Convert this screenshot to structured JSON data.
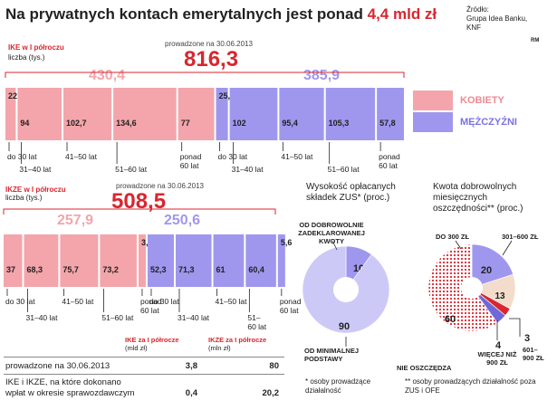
{
  "header": {
    "title_main": "Na prywatnych kontach emerytalnych jest ponad ",
    "title_highlight": "4,4 mld zł",
    "source_line1": "Źródło:",
    "source_line2": "Grupa Idea Banku,",
    "source_line3": "KNF",
    "credit": "RM"
  },
  "legend": {
    "women": "KOBIETY",
    "men": "MĘŻCZYŹNI",
    "women_color": "#f3a5ab",
    "men_color": "#9f97ee"
  },
  "chart_data": [
    {
      "type": "bar",
      "title": "IKE w I półroczu",
      "ylabel": "liczba (tys.)",
      "note": "prowadzone na 30.06.2013",
      "total": "816,3",
      "group_totals": {
        "women": "430,4",
        "men": "385,9"
      },
      "categories": [
        "do 30 lat",
        "31–40 lat",
        "41–50 lat",
        "51–60 lat",
        "ponad 60 lat"
      ],
      "category_labels": [
        {
          "line1": "do 30 lat",
          "line2": ""
        },
        {
          "line1": "31–40 lat",
          "line2": ""
        },
        {
          "line1": "41–50 lat",
          "line2": ""
        },
        {
          "line1": "51–60 lat",
          "line2": ""
        },
        {
          "line1": "ponad",
          "line2": "60 lat"
        }
      ],
      "series": [
        {
          "name": "KOBIETY",
          "values": [
            22.1,
            94,
            102.7,
            134.6,
            77
          ],
          "labels": [
            "22,1",
            "94",
            "102,7",
            "134,6",
            "77"
          ]
        },
        {
          "name": "MĘŻCZYŹNI",
          "values": [
            25.4,
            102,
            95.4,
            105.3,
            57.8
          ],
          "labels": [
            "25,4",
            "102",
            "95,4",
            "105,3",
            "57,8"
          ]
        }
      ]
    },
    {
      "type": "bar",
      "title": "IKZE w I półroczu",
      "ylabel": "liczba (tys.)",
      "note": "prowadzone na 30.06.2013",
      "total": "508,5",
      "group_totals": {
        "women": "257,9",
        "men": "250,6"
      },
      "categories": [
        "do 30 lat",
        "31–40 lat",
        "41–50 lat",
        "51–60 lat",
        "ponad 60 lat"
      ],
      "category_labels": [
        {
          "line1": "do 30 lat",
          "line2": ""
        },
        {
          "line1": "31–40 lat",
          "line2": ""
        },
        {
          "line1": "41–50 lat",
          "line2": ""
        },
        {
          "line1": "51–",
          "line2": "60 lat"
        },
        {
          "line1": "ponad",
          "line2": "60 lat"
        }
      ],
      "category_labels_women": [
        {
          "line1": "do 30 lat",
          "line2": ""
        },
        {
          "line1": "31–40 lat",
          "line2": ""
        },
        {
          "line1": "41–50 lat",
          "line2": ""
        },
        {
          "line1": "51–60 lat",
          "line2": ""
        },
        {
          "line1": "ponad",
          "line2": "60 lat"
        }
      ],
      "series": [
        {
          "name": "KOBIETY",
          "values": [
            37,
            68.3,
            75.7,
            73.2,
            3.7
          ],
          "labels": [
            "37",
            "68,3",
            "75,7",
            "73,2",
            "3,7"
          ]
        },
        {
          "name": "MĘŻCZYŹNI",
          "values": [
            52.3,
            71.3,
            61,
            60.4,
            5.6
          ],
          "labels": [
            "52,3",
            "71,3",
            "61",
            "60,4",
            "5,6"
          ]
        }
      ]
    },
    {
      "type": "pie",
      "title": "Wysokość opłacanych składek ZUS* (proc.)",
      "slices": [
        {
          "label": "OD DOBROWOLNIE ZADEKLAROWANEJ KWOTY",
          "value": 10,
          "color": "#9f97ee"
        },
        {
          "label": "OD MINIMALNEJ PODSTAWY",
          "value": 90,
          "color": "#cdc9f7"
        }
      ],
      "footnote": "* osoby prowadzące działalność"
    },
    {
      "type": "pie",
      "title": "Kwota dobrowolnych miesięcznych oszczędności** (proc.)",
      "slices": [
        {
          "label": "DO 300 ZŁ",
          "value": 20,
          "color": "#9f97ee"
        },
        {
          "label": "301–600 ZŁ",
          "value": 13,
          "color": "#f3dccb"
        },
        {
          "label": "601–900 ZŁ",
          "value": 3,
          "color": "#d9262f"
        },
        {
          "label": "WIĘCEJ NIŻ 900 ZŁ",
          "value": 4,
          "color": "#7068d8"
        },
        {
          "label": "NIE OSZCZĘDZA",
          "value": 60,
          "color": "#d9262f"
        }
      ],
      "footnote": "** osoby prowadzących działalność poza ZUS i OFE"
    }
  ],
  "table": {
    "col1": "IKE za I półrocze",
    "col1_unit": "(mld zł)",
    "col2": "IKZE za I półrocze",
    "col2_unit": "(mln zł)",
    "rows": [
      {
        "label1": "prowadzone na 30.06.2013",
        "label2": "",
        "v1": "3,8",
        "v2": "80"
      },
      {
        "label1": "IKE i IKZE, na które dokonano",
        "label2": "wpłat w okresie sprawozdawczym",
        "v1": "0,4",
        "v2": "20,2"
      }
    ]
  }
}
